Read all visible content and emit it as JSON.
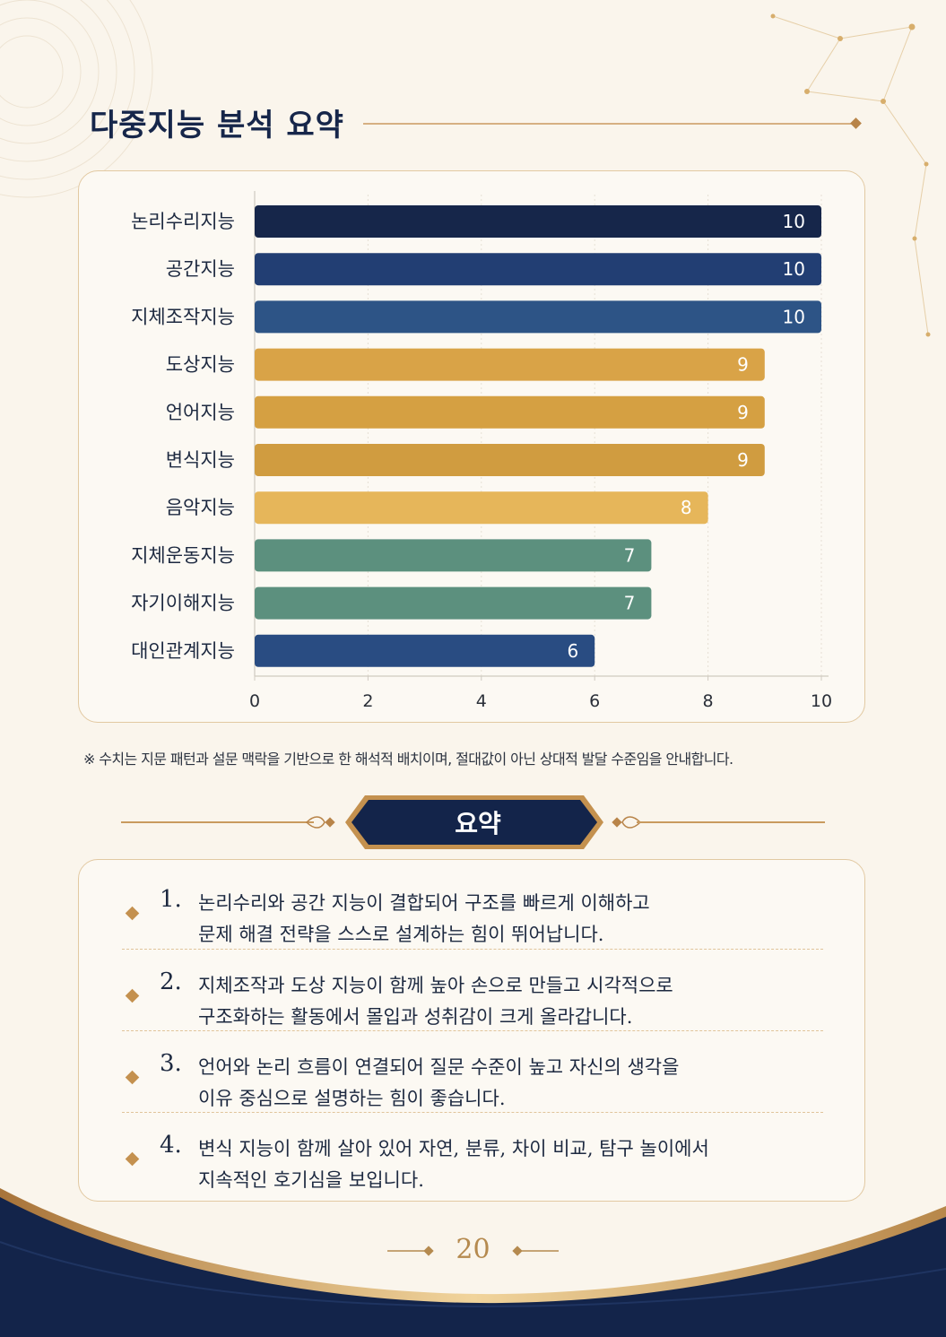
{
  "page": {
    "title": "다중지능 분석 요약",
    "note": "※ 수치는 지문 패턴과 설문 맥락을 기반으로 한 해석적 배치이며, 절대값이 아닌 상대적 발달 수준임을 안내합니다.",
    "page_number": "20"
  },
  "colors": {
    "navy": "#13244a",
    "gold": "#c4914f",
    "background": "#faf5ec"
  },
  "chart_data": {
    "type": "bar",
    "orientation": "horizontal",
    "title": "",
    "xlabel": "",
    "ylabel": "",
    "xlim": [
      0,
      10
    ],
    "xticks": [
      0,
      2,
      4,
      6,
      8,
      10
    ],
    "grid": true,
    "categories": [
      "논리수리지능",
      "공간지능",
      "지체조작지능",
      "도상지능",
      "언어지능",
      "변식지능",
      "음악지능",
      "지체운동지능",
      "자기이해지능",
      "대인관계지능"
    ],
    "values": [
      10,
      10,
      10,
      9,
      9,
      9,
      8,
      7,
      7,
      6
    ],
    "bar_colors": [
      "#16264a",
      "#223e73",
      "#2d5486",
      "#d9a347",
      "#d5a042",
      "#d09c40",
      "#e6b65a",
      "#5c907e",
      "#5c907e",
      "#294c82"
    ],
    "data_labels": true
  },
  "summary": {
    "title": "요약",
    "items": [
      {
        "num": "1.",
        "line1": "논리수리와 공간 지능이 결합되어 구조를 빠르게 이해하고",
        "line2": "문제 해결 전략을 스스로 설계하는 힘이 뛰어납니다."
      },
      {
        "num": "2.",
        "line1": "지체조작과 도상 지능이 함께 높아 손으로 만들고 시각적으로",
        "line2": "구조화하는 활동에서 몰입과 성취감이 크게 올라갑니다."
      },
      {
        "num": "3.",
        "line1": "언어와 논리 흐름이 연결되어 질문 수준이 높고 자신의 생각을",
        "line2": "이유 중심으로 설명하는 힘이 좋습니다."
      },
      {
        "num": "4.",
        "line1": "변식 지능이 함께 살아 있어 자연, 분류, 차이 비교, 탐구 놀이에서",
        "line2": "지속적인 호기심을 보입니다."
      }
    ]
  }
}
